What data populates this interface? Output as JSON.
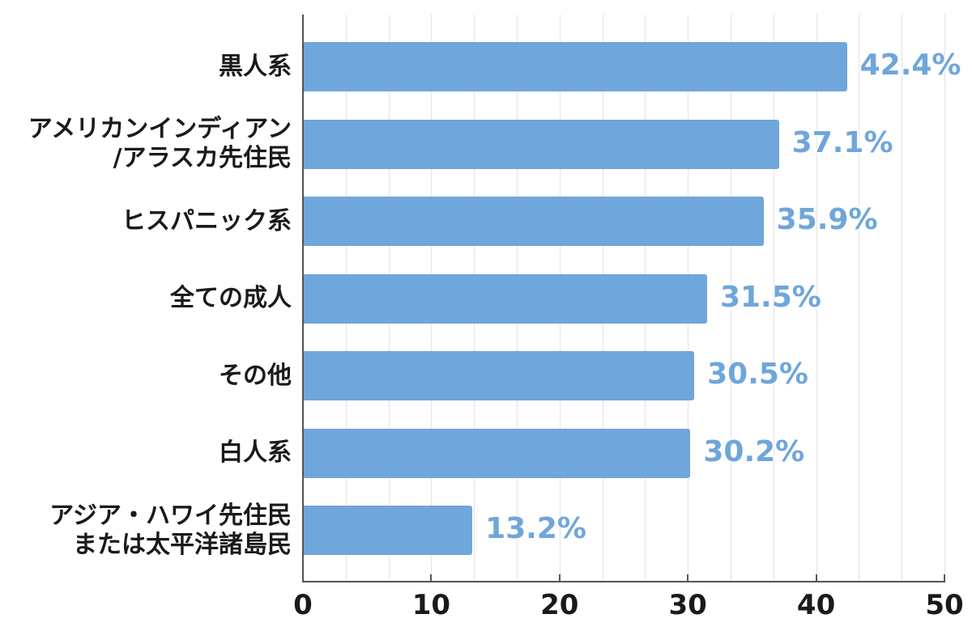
{
  "chart_data": {
    "type": "bar",
    "orientation": "horizontal",
    "title": "",
    "xlabel": "",
    "ylabel": "",
    "categories": [
      "黒人系",
      "アメリカンインディアン\n/アラスカ先住民",
      "ヒスパニック系",
      "全ての成人",
      "その他",
      "白人系",
      "アジア・ハワイ先住民\nまたは太平洋諸島民"
    ],
    "values": [
      42.4,
      37.1,
      35.9,
      31.5,
      30.5,
      30.2,
      13.2
    ],
    "value_labels": [
      "42.4%",
      "37.1%",
      "35.9%",
      "31.5%",
      "30.5%",
      "30.2%",
      "13.2%"
    ],
    "xlim": [
      0,
      50
    ],
    "x_ticks": [
      0,
      10,
      20,
      30,
      40,
      50
    ],
    "x_tick_labels": [
      "0",
      "10",
      "20",
      "30",
      "40",
      "50"
    ],
    "grid": true,
    "grid_minor_step": 3.333,
    "legend": null,
    "colors": {
      "bar": "#6fa6db",
      "value_label": "#6fa6db",
      "axis": "#555555",
      "grid": "#e3e3e3",
      "text": "#1a1a1a"
    }
  }
}
